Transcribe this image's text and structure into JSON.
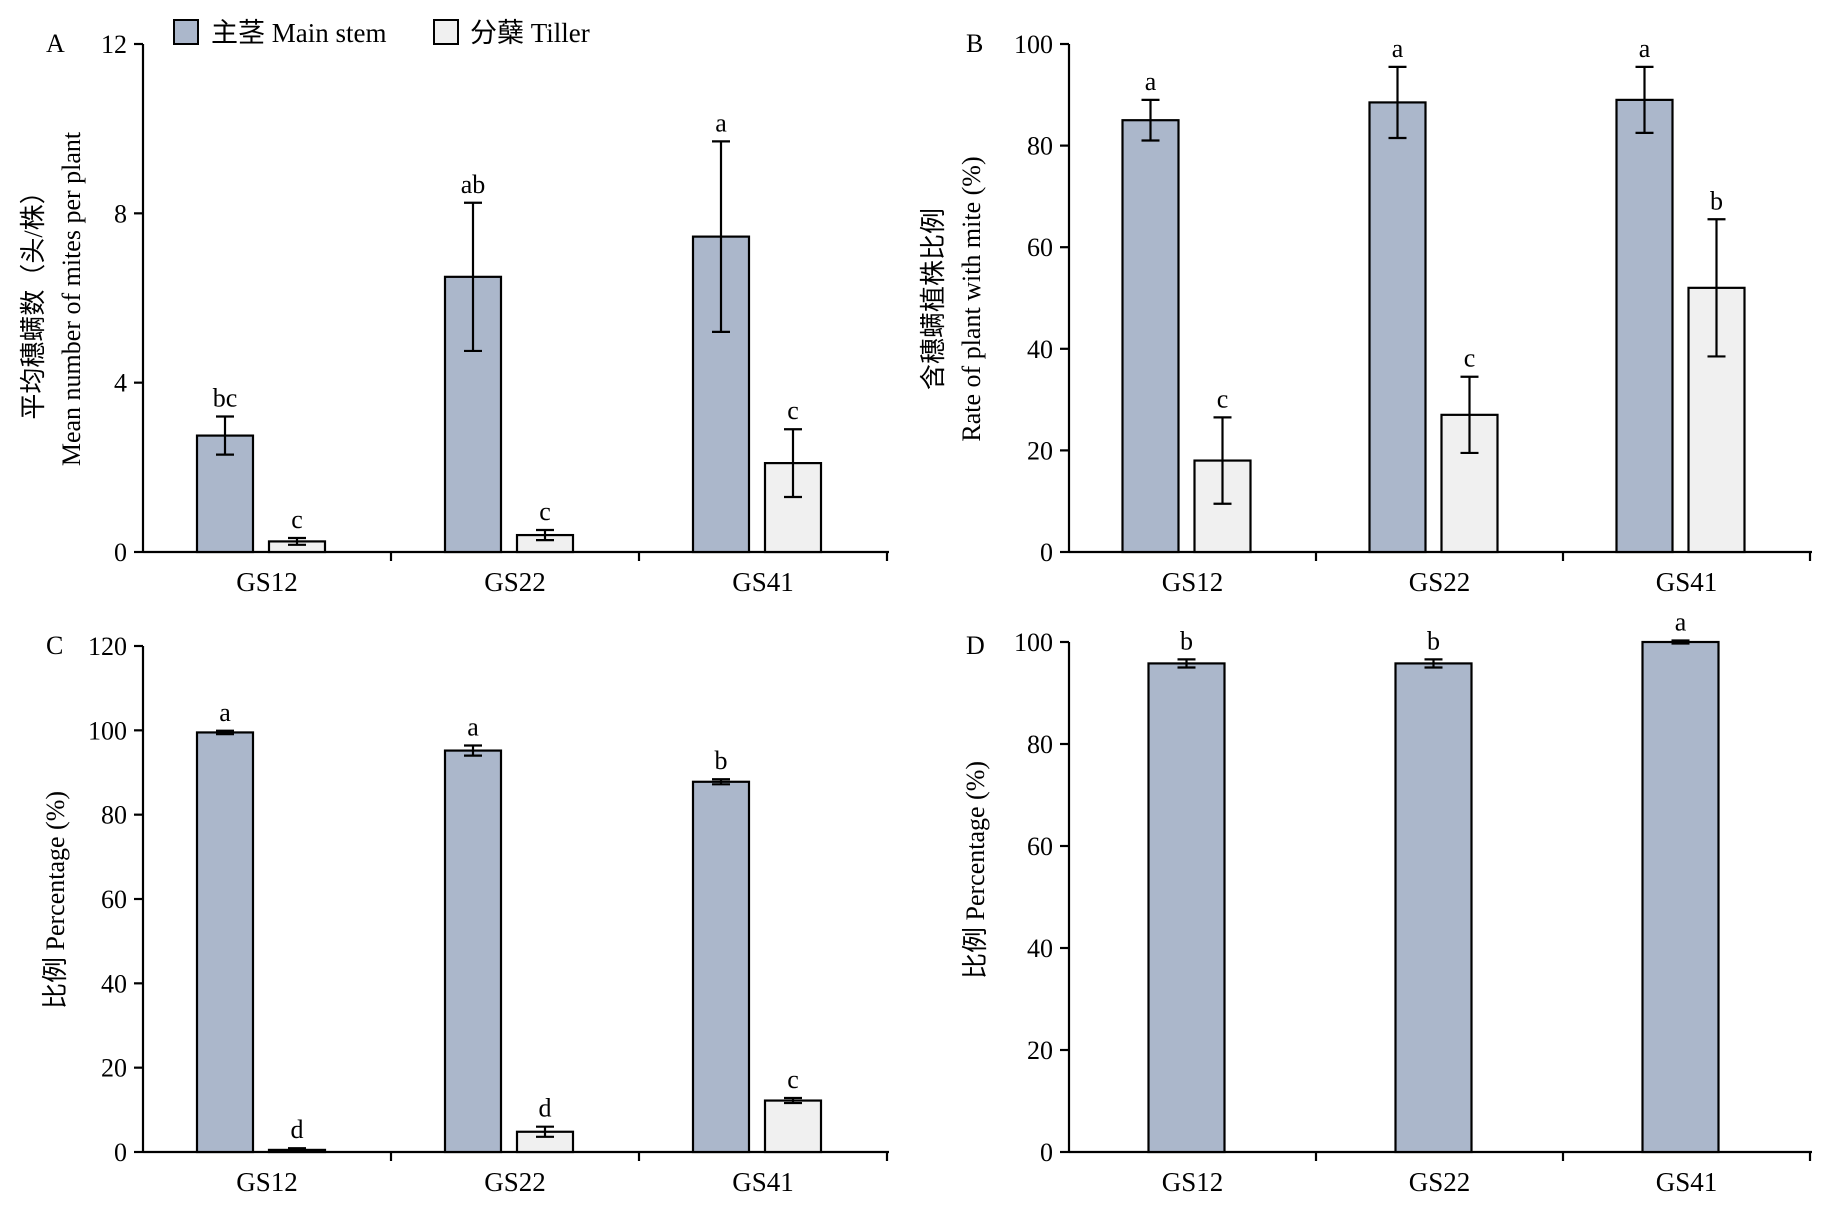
{
  "colors": {
    "main_stem": "#abb7cb",
    "tiller": "#f0f0f0"
  },
  "legend": [
    {
      "label": "主茎 Main stem",
      "color": "#abb7cb"
    },
    {
      "label": "分蘖 Tiller",
      "color": "#f0f0f0"
    }
  ],
  "chart_data": [
    {
      "panel": "A",
      "type": "bar",
      "categories": [
        "GS12",
        "GS22",
        "GS41"
      ],
      "ylabel_cn": "平均穗螨数（头/株）",
      "ylabel_en": "Mean number of mites per plant",
      "ylim": [
        0,
        12
      ],
      "yticks": [
        0,
        4,
        8,
        12
      ],
      "series": [
        {
          "name": "主茎 Main stem",
          "values": [
            2.75,
            6.5,
            7.45
          ],
          "errors": [
            0.45,
            1.75,
            2.25
          ],
          "sig": [
            "bc",
            "ab",
            "a"
          ]
        },
        {
          "name": "分蘖 Tiller",
          "values": [
            0.25,
            0.4,
            2.1
          ],
          "errors": [
            0.08,
            0.12,
            0.8
          ],
          "sig": [
            "c",
            "c",
            "c"
          ]
        }
      ]
    },
    {
      "panel": "B",
      "type": "bar",
      "categories": [
        "GS12",
        "GS22",
        "GS41"
      ],
      "ylabel_cn": "含穗螨植株比例",
      "ylabel_en": "Rate of plant with mite (%)",
      "ylim": [
        0,
        100
      ],
      "yticks": [
        0,
        20,
        40,
        60,
        80,
        100
      ],
      "series": [
        {
          "name": "主茎 Main stem",
          "values": [
            85,
            88.5,
            89
          ],
          "errors": [
            4,
            7,
            6.5
          ],
          "sig": [
            "a",
            "a",
            "a"
          ]
        },
        {
          "name": "分蘖 Tiller",
          "values": [
            18,
            27,
            52
          ],
          "errors": [
            8.5,
            7.5,
            13.5
          ],
          "sig": [
            "c",
            "c",
            "b"
          ]
        }
      ]
    },
    {
      "panel": "C",
      "type": "bar",
      "categories": [
        "GS12",
        "GS22",
        "GS41"
      ],
      "ylabel_cn": "比例",
      "ylabel_en": "Percentage (%)",
      "ylim": [
        0,
        120
      ],
      "yticks": [
        0,
        20,
        40,
        60,
        80,
        100,
        120
      ],
      "series": [
        {
          "name": "主茎 Main stem",
          "values": [
            99.5,
            95.2,
            87.8
          ],
          "errors": [
            0.4,
            1.2,
            0.6
          ],
          "sig": [
            "a",
            "a",
            "b"
          ]
        },
        {
          "name": "分蘖 Tiller",
          "values": [
            0.5,
            4.8,
            12.2
          ],
          "errors": [
            0.4,
            1.2,
            0.6
          ],
          "sig": [
            "d",
            "d",
            "c"
          ]
        }
      ]
    },
    {
      "panel": "D",
      "type": "bar",
      "categories": [
        "GS12",
        "GS22",
        "GS41"
      ],
      "ylabel_cn": "比例",
      "ylabel_en": "Percentage (%)",
      "ylim": [
        0,
        100
      ],
      "yticks": [
        0,
        20,
        40,
        60,
        80,
        100
      ],
      "series": [
        {
          "name": "主茎 Main stem",
          "values": [
            95.8,
            95.8,
            100
          ],
          "errors": [
            0.8,
            0.8,
            0.3
          ],
          "sig": [
            "b",
            "b",
            "a"
          ]
        }
      ]
    }
  ]
}
